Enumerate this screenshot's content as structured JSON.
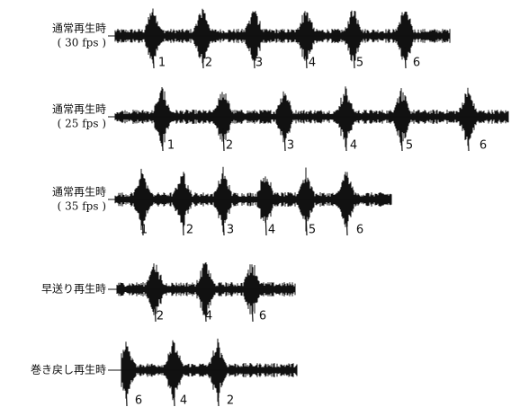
{
  "rows": [
    {
      "label": [
        "通常再生時",
        "( 30 fps )"
      ],
      "markers": [
        "1",
        "2",
        "3",
        "4",
        "5",
        "6"
      ]
    },
    {
      "label": [
        "通常再生時",
        "( 25 fps )"
      ],
      "markers": [
        "1",
        "2",
        "3",
        "4",
        "5",
        "6"
      ]
    },
    {
      "label": [
        "通常再生時",
        "( 35 fps )"
      ],
      "markers": [
        "1",
        "2",
        "3",
        "4",
        "5",
        "6"
      ]
    },
    {
      "label": [
        "早送り再生時"
      ],
      "markers": [
        "2",
        "4",
        "6"
      ]
    },
    {
      "label": [
        "巻き戻し再生時"
      ],
      "markers": [
        "6",
        "4",
        "2"
      ]
    }
  ]
}
